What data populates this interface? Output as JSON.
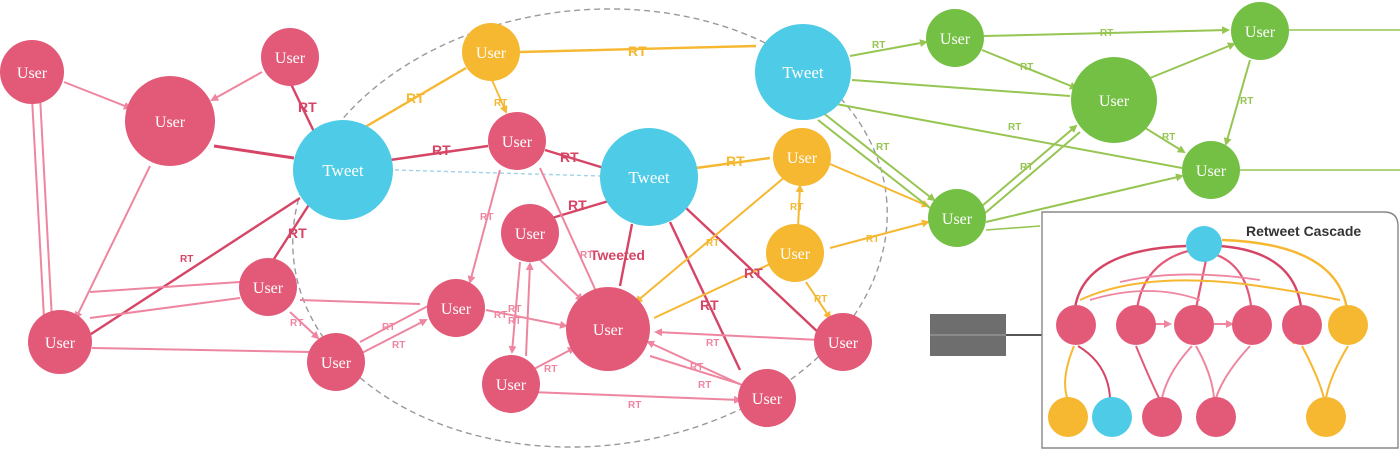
{
  "colors": {
    "pink": "#e35a78",
    "pink_light": "#ee86a0",
    "blue": "#4ecbe6",
    "yellow": "#f6b731",
    "green": "#74c044",
    "green_edge": "#96c552",
    "gray": "#888888"
  },
  "labels": {
    "user": "User",
    "tweet": "Tweet",
    "rt": "RT",
    "tweeted": "Tweeted"
  },
  "cascade": {
    "title": "Retweet Cascade"
  },
  "icons": {
    "legend": "redacted-legend-block"
  }
}
